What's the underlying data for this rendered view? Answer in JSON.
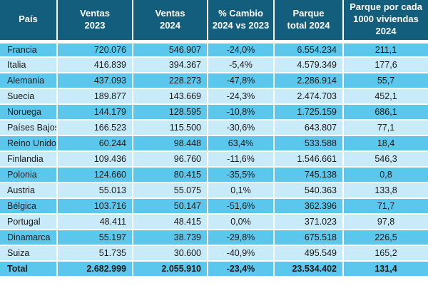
{
  "colors": {
    "header_bg": "#135E7D",
    "header_text": "#FFFFFF",
    "row_dark": "#5BC7ED",
    "row_light": "#C9EAF8",
    "grid": "#FFFFFF",
    "text": "#1A1A1A"
  },
  "chart_data": {
    "type": "table",
    "title": "",
    "legend": null,
    "grid": "white 2px separators, alternating row shading starting dark",
    "columns": [
      {
        "id": "pais",
        "header_lines": [
          "País"
        ],
        "align": "left"
      },
      {
        "id": "ventas_2023",
        "header_lines": [
          "Ventas",
          "2023"
        ],
        "align": "right"
      },
      {
        "id": "ventas_2024",
        "header_lines": [
          "Ventas",
          "2024"
        ],
        "align": "right"
      },
      {
        "id": "cambio_pct",
        "header_lines": [
          "% Cambio",
          "2024 vs 2023"
        ],
        "align": "center"
      },
      {
        "id": "parque_total_2024",
        "header_lines": [
          "Parque",
          "total 2024"
        ],
        "align": "right"
      },
      {
        "id": "parque_por_1000",
        "header_lines": [
          "Parque por cada",
          "1000 viviendas",
          "2024"
        ],
        "align": "center"
      }
    ],
    "rows": [
      {
        "pais": "Francia",
        "ventas_2023": "720.076",
        "ventas_2024": "546.907",
        "cambio_pct": "-24,0%",
        "parque_total_2024": "6.554.234",
        "parque_por_1000": "211,1"
      },
      {
        "pais": "Italia",
        "ventas_2023": "416.839",
        "ventas_2024": "394.367",
        "cambio_pct": "-5,4%",
        "parque_total_2024": "4.579.349",
        "parque_por_1000": "177,6"
      },
      {
        "pais": "Alemania",
        "ventas_2023": "437.093",
        "ventas_2024": "228.273",
        "cambio_pct": "-47,8%",
        "parque_total_2024": "2.286.914",
        "parque_por_1000": "55,7"
      },
      {
        "pais": "Suecia",
        "ventas_2023": "189.877",
        "ventas_2024": "143.669",
        "cambio_pct": "-24,3%",
        "parque_total_2024": "2.474.703",
        "parque_por_1000": "452,1"
      },
      {
        "pais": "Noruega",
        "ventas_2023": "144.179",
        "ventas_2024": "128.595",
        "cambio_pct": "-10,8%",
        "parque_total_2024": "1.725.159",
        "parque_por_1000": "686,1"
      },
      {
        "pais": "Países Bajos",
        "ventas_2023": "166.523",
        "ventas_2024": "115.500",
        "cambio_pct": "-30,6%",
        "parque_total_2024": "643.807",
        "parque_por_1000": "77,1"
      },
      {
        "pais": "Reino Unido",
        "ventas_2023": "60.244",
        "ventas_2024": "98.448",
        "cambio_pct": "63,4%",
        "parque_total_2024": "533.588",
        "parque_por_1000": "18,4"
      },
      {
        "pais": "Finlandia",
        "ventas_2023": "109.436",
        "ventas_2024": "96.760",
        "cambio_pct": "-11,6%",
        "parque_total_2024": "1.546.661",
        "parque_por_1000": "546,3"
      },
      {
        "pais": "Polonia",
        "ventas_2023": "124.660",
        "ventas_2024": "80.415",
        "cambio_pct": "-35,5%",
        "parque_total_2024": "745.138",
        "parque_por_1000": "0,8"
      },
      {
        "pais": "Austria",
        "ventas_2023": "55.013",
        "ventas_2024": "55.075",
        "cambio_pct": "0,1%",
        "parque_total_2024": "540.363",
        "parque_por_1000": "133,8"
      },
      {
        "pais": "Bélgica",
        "ventas_2023": "103.716",
        "ventas_2024": "50.147",
        "cambio_pct": "-51,6%",
        "parque_total_2024": "362.396",
        "parque_por_1000": "71,7"
      },
      {
        "pais": "Portugal",
        "ventas_2023": "48.411",
        "ventas_2024": "48.415",
        "cambio_pct": "0,0%",
        "parque_total_2024": "371.023",
        "parque_por_1000": "97,8"
      },
      {
        "pais": "Dinamarca",
        "ventas_2023": "55.197",
        "ventas_2024": "38.739",
        "cambio_pct": "-29,8%",
        "parque_total_2024": "675.518",
        "parque_por_1000": "226,5"
      },
      {
        "pais": "Suiza",
        "ventas_2023": "51.735",
        "ventas_2024": "30.600",
        "cambio_pct": "-40,9%",
        "parque_total_2024": "495.549",
        "parque_por_1000": "165,2"
      }
    ],
    "total_row": {
      "pais": "Total",
      "ventas_2023": "2.682.999",
      "ventas_2024": "2.055.910",
      "cambio_pct": "-23,4%",
      "parque_total_2024": "23.534.402",
      "parque_por_1000": "131,4"
    }
  }
}
